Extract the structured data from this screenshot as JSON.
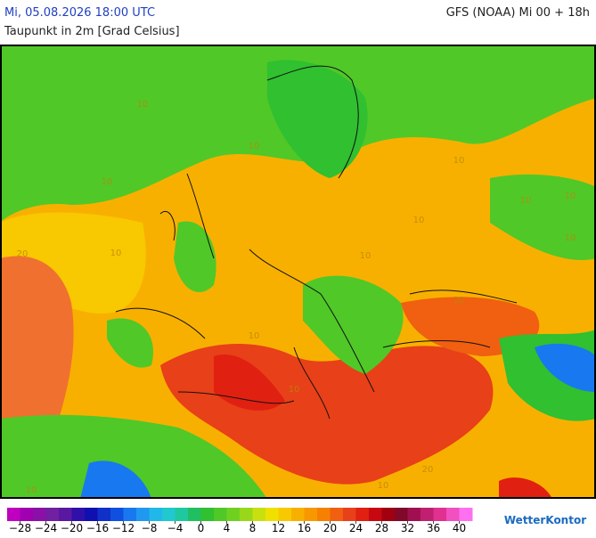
{
  "header": {
    "valid_time": "Mi, 05.08.2026 18:00 UTC",
    "model_run": "GFS (NOAA) Mi 00 + 18h",
    "parameter": "Taupunkt in 2m [Grad Celsius]"
  },
  "map_labels": [
    "10",
    "10",
    "10",
    "10",
    "10",
    "10",
    "10",
    "10",
    "10",
    "20",
    "10",
    "10",
    "10",
    "20",
    "10",
    "20",
    "10"
  ],
  "colorbar": {
    "lim": [
      -30,
      42
    ],
    "colors": [
      "#c000c0",
      "#a000b0",
      "#8a10a8",
      "#7020a0",
      "#5a18a0",
      "#3010a8",
      "#1010b0",
      "#1030c8",
      "#1050e0",
      "#1878f0",
      "#2098f0",
      "#20b8e8",
      "#20c8d0",
      "#20c8a0",
      "#20c060",
      "#30c030",
      "#50c828",
      "#70d020",
      "#98d818",
      "#c8e010",
      "#f0e000",
      "#f8c800",
      "#f8b000",
      "#f89800",
      "#f88000",
      "#f06010",
      "#e84018",
      "#e02010",
      "#c80810",
      "#a00010",
      "#800828",
      "#a01050",
      "#c02070",
      "#e03090",
      "#f050c0",
      "#ff70f0"
    ],
    "ticks": [
      {
        "value": -28,
        "label": "−28"
      },
      {
        "value": -24,
        "label": "−24"
      },
      {
        "value": -20,
        "label": "−20"
      },
      {
        "value": -16,
        "label": "−16"
      },
      {
        "value": -12,
        "label": "−12"
      },
      {
        "value": -8,
        "label": "−8"
      },
      {
        "value": -4,
        "label": "−4"
      },
      0,
      4,
      8,
      12,
      16,
      20,
      24,
      28,
      32,
      36,
      40
    ]
  },
  "brand": "WetterKontor"
}
